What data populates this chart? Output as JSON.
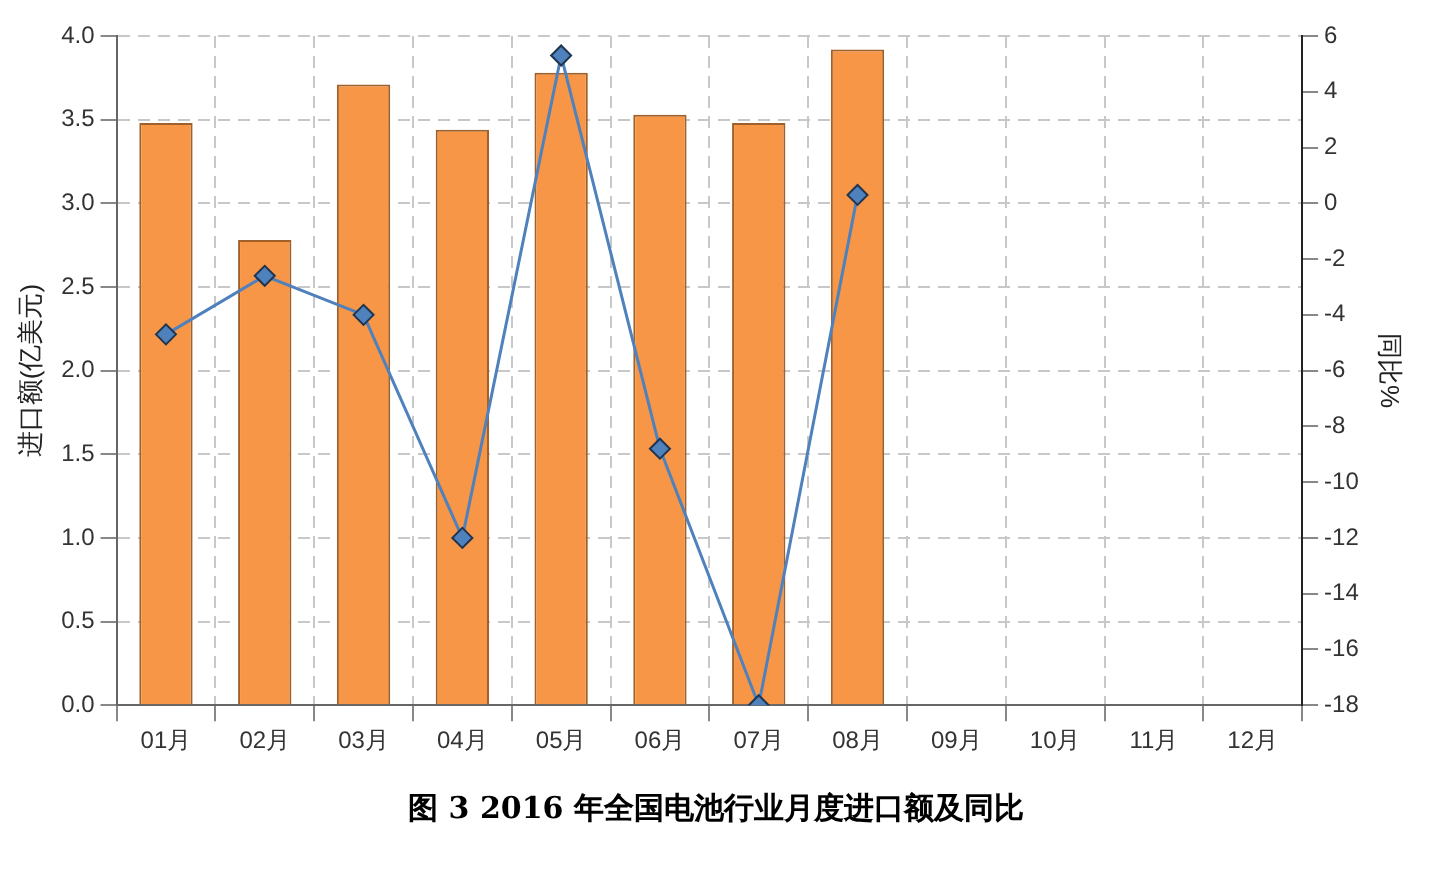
{
  "chart_data": {
    "type": "bar",
    "title": "图 3 2016 年全国电池行业月度进口额及同比",
    "ylabel": "进口额(亿美元)",
    "y2label": "同比%",
    "categories": [
      "01月",
      "02月",
      "03月",
      "04月",
      "05月",
      "06月",
      "07月",
      "08月",
      "09月",
      "10月",
      "11月",
      "12月"
    ],
    "series": [
      {
        "color": "#f79646",
        "values": [
          3.48,
          2.78,
          3.71,
          3.44,
          3.78,
          3.53,
          3.48,
          3.92,
          null,
          null,
          null,
          null
        ]
      },
      {
        "type": "line",
        "axis": "y2",
        "color": "#4f81bd",
        "values": [
          -4.7,
          -2.6,
          -4.0,
          -12.0,
          5.3,
          -8.8,
          -18,
          0.3,
          null,
          null,
          null,
          null
        ]
      }
    ],
    "ylim": [
      0,
      4
    ],
    "yticks": [
      {
        "value": 0,
        "label": "0.0"
      },
      {
        "value": 0.5,
        "label": "0.5"
      },
      {
        "value": 1,
        "label": "1.0"
      },
      {
        "value": 1.5,
        "label": "1.5"
      },
      {
        "value": 2,
        "label": "2.0"
      },
      {
        "value": 2.5,
        "label": "2.5"
      },
      {
        "value": 3,
        "label": "3.0"
      },
      {
        "value": 3.5,
        "label": "3.5"
      },
      {
        "value": 4,
        "label": "4.0"
      }
    ],
    "y2lim": [
      -18,
      6
    ],
    "y2ticks": [
      -18,
      -16,
      -14,
      -12,
      -10,
      -8,
      -6,
      -4,
      -2,
      0,
      2,
      4,
      6
    ],
    "grid": true,
    "marker": "diamond",
    "line_style": "solid"
  }
}
